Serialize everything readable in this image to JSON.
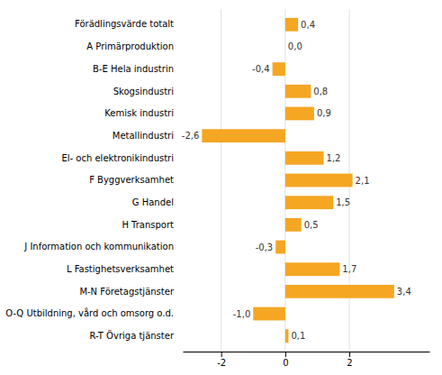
{
  "chart_data": {
    "type": "bar",
    "orientation": "horizontal",
    "categories": [
      "Förädlingsvärde totalt",
      "A Primärproduktion",
      "B-E Hela industrin",
      "Skogsindustri",
      "Kemisk industri",
      "Metallindustri",
      "El- och elektronikindustri",
      "F Byggverksamhet",
      "G Handel",
      "H Transport",
      "J Information och kommunikation",
      "L Fastighetsverksamhet",
      "M-N Företagstjänster",
      "O-Q Utbildning, vård och omsorg o.d.",
      "R-T Övriga tjänster"
    ],
    "values": [
      0.4,
      0.0,
      -0.4,
      0.8,
      0.9,
      -2.6,
      1.2,
      2.1,
      1.5,
      0.5,
      -0.3,
      1.7,
      3.4,
      -1.0,
      0.1
    ],
    "value_labels": [
      "0,4",
      "0,0",
      "-0,4",
      "0,8",
      "0,9",
      "-2,6",
      "1,2",
      "2,1",
      "1,5",
      "0,5",
      "-0,3",
      "1,7",
      "3,4",
      "-1,0",
      "0,1"
    ],
    "data_labels": true,
    "color": "#F5A623",
    "xlim": [
      -3.2,
      4.5
    ],
    "xticks": [
      -2,
      0,
      2
    ],
    "grid": true
  }
}
